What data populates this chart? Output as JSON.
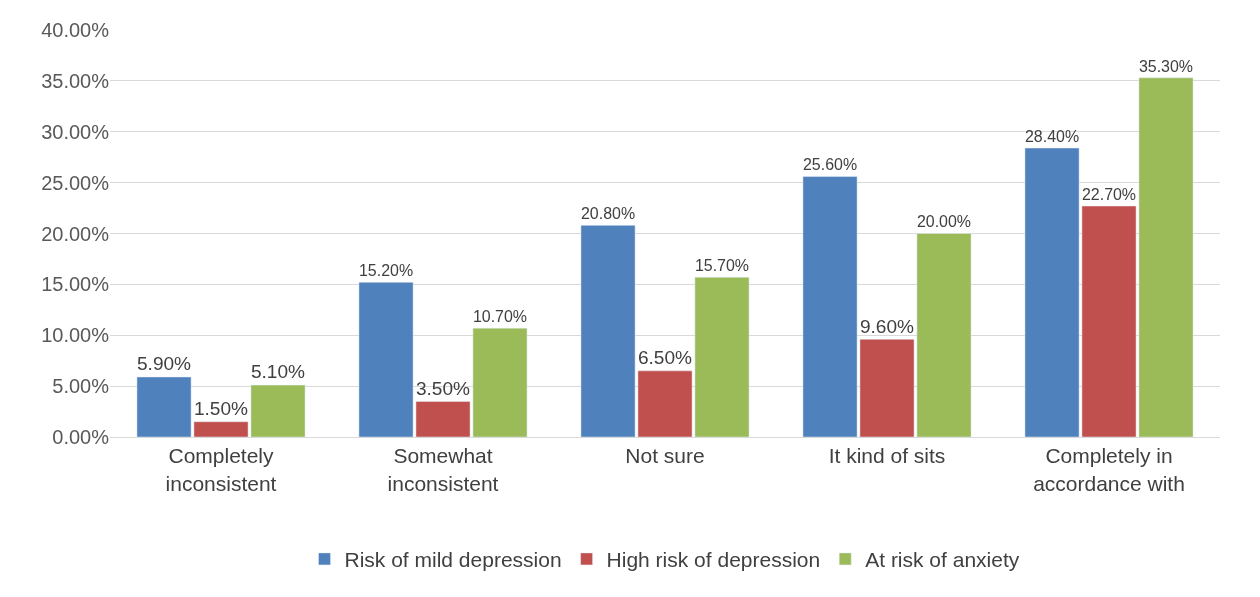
{
  "chart_data": {
    "type": "bar",
    "categories": [
      "Completely inconsistent",
      "Somewhat inconsistent",
      "Not sure",
      "It kind of sits",
      "Completely in accordance with"
    ],
    "series": [
      {
        "name": "Risk of mild depression",
        "color": "#4f81bd",
        "values": [
          5.9,
          15.2,
          20.8,
          25.6,
          28.4
        ],
        "value_labels": [
          "5.90%",
          "15.20%",
          "20.80%",
          "25.60%",
          "28.40%"
        ]
      },
      {
        "name": "High risk of depression",
        "color": "#c0504d",
        "values": [
          1.5,
          3.5,
          6.5,
          9.6,
          22.7
        ],
        "value_labels": [
          "1.50%",
          "3.50%",
          "6.50%",
          "9.60%",
          "22.70%"
        ]
      },
      {
        "name": "At risk of anxiety",
        "color": "#9bbb59",
        "values": [
          5.1,
          10.7,
          15.7,
          20.0,
          35.3
        ],
        "value_labels": [
          "5.10%",
          "10.70%",
          "15.70%",
          "20.00%",
          "35.30%"
        ]
      }
    ],
    "ylim": [
      0,
      40
    ],
    "yticks": [
      {
        "value": 0,
        "label": "0.00%"
      },
      {
        "value": 5,
        "label": "5.00%"
      },
      {
        "value": 10,
        "label": "10.00%"
      },
      {
        "value": 15,
        "label": "15.00%"
      },
      {
        "value": 20,
        "label": "20.00%"
      },
      {
        "value": 25,
        "label": "25.00%"
      },
      {
        "value": 30,
        "label": "30.00%"
      },
      {
        "value": 35,
        "label": "35.00%"
      },
      {
        "value": 40,
        "label": "40.00%"
      }
    ],
    "grid": "y",
    "legend": "bottom"
  }
}
